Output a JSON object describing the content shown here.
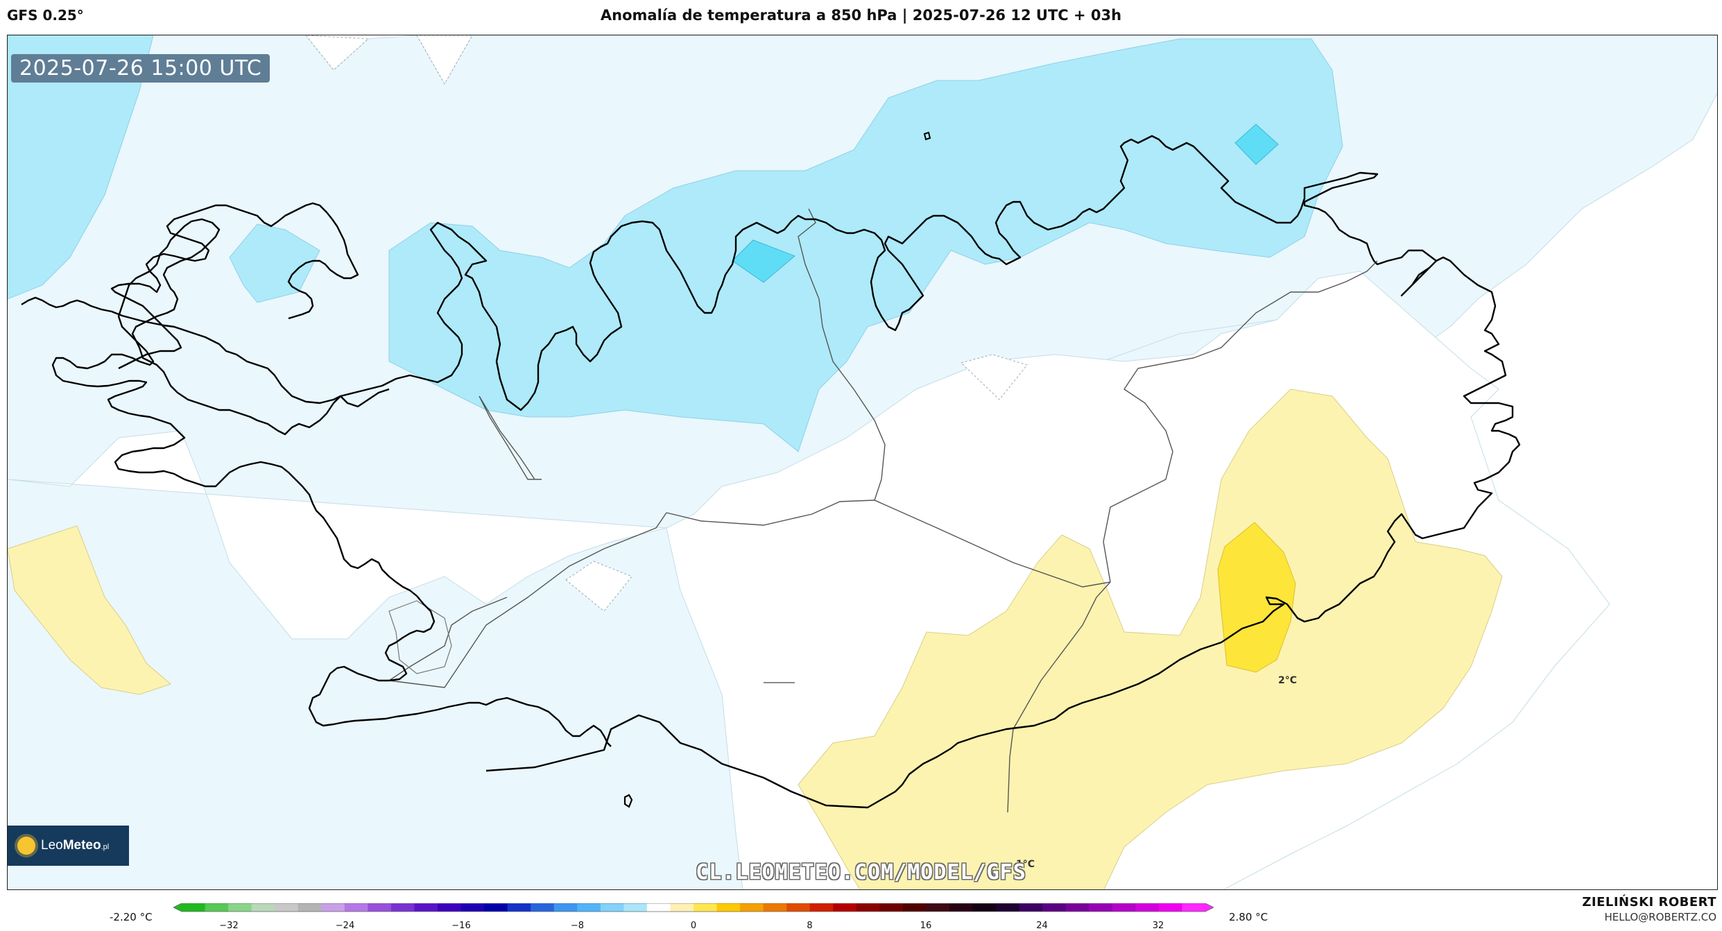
{
  "header": {
    "model": "GFS 0.25°",
    "title": "Anomalía de temperatura a 850 hPa | 2025-07-26 12 UTC + 03h"
  },
  "map": {
    "valid_time": "2025-07-26 15:00 UTC",
    "contour_labels": [
      "2°C",
      "1°C"
    ],
    "watermark": "CL.LEOMETEO.COM/MODEL/GFS",
    "logo": {
      "prefix": "Leo",
      "suffix": "Meteo",
      "tld": ".pl"
    }
  },
  "colorbar": {
    "min_label": "-2.20 °C",
    "max_label": "2.80 °C",
    "ticks": [
      "−32",
      "−24",
      "−16",
      "−8",
      "0",
      "8",
      "16",
      "24",
      "32"
    ],
    "colors": [
      "#1fb91f",
      "#55c855",
      "#8ad48a",
      "#b9d7b9",
      "#c8c8c8",
      "#b4b4b4",
      "#c8a0e6",
      "#b478e6",
      "#9650dc",
      "#7832d2",
      "#5a14c8",
      "#3c00be",
      "#1e00b4",
      "#0000aa",
      "#1432c8",
      "#2864dc",
      "#3c96f0",
      "#50b4fa",
      "#82d2fa",
      "#aae6fa",
      "#ffffff",
      "#fff0b4",
      "#ffe650",
      "#ffc800",
      "#f5a000",
      "#eb7800",
      "#e14b00",
      "#d21e00",
      "#b40000",
      "#8c0000",
      "#6e0000",
      "#500000",
      "#3c0a14",
      "#280014",
      "#140014",
      "#1e0032",
      "#3c0064",
      "#5a0082",
      "#78009b",
      "#9600b4",
      "#b400c8",
      "#d200dc",
      "#f000f0",
      "#ff28ff"
    ],
    "field_colors": {
      "cold_light": "#eaf7fd",
      "cold_mid": "#aeeaf9",
      "cold_strong": "#5fdcf6",
      "warm_light": "#fdf3b0",
      "warm_strong": "#fde53a"
    }
  },
  "credit": {
    "name": "ZIELIŃSKI ROBERT",
    "email": "HELLO@ROBERTZ.CO"
  }
}
